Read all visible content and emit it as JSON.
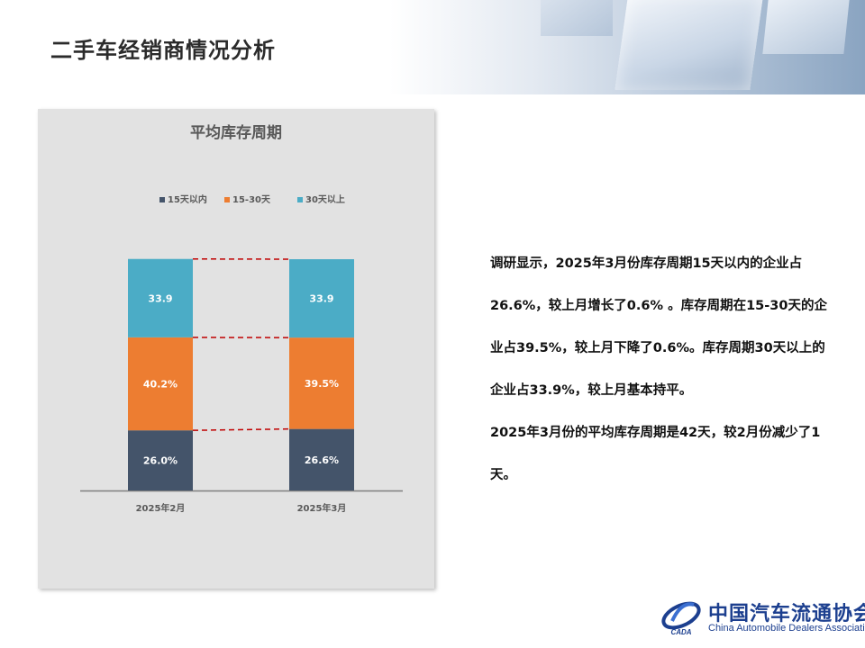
{
  "page": {
    "title": "二手车经销商情况分析"
  },
  "chart_data": {
    "type": "bar",
    "stacked": true,
    "title": "平均库存周期",
    "categories": [
      "2025年2月",
      "2025年3月"
    ],
    "series": [
      {
        "name": "15天以内",
        "values": [
          26.0,
          26.6
        ],
        "labels": [
          "26.0%",
          "26.6%"
        ],
        "color": "#44546a"
      },
      {
        "name": "15-30天",
        "values": [
          40.2,
          39.5
        ],
        "labels": [
          "40.2%",
          "39.5%"
        ],
        "color": "#ed7d31"
      },
      {
        "name": "30天以上",
        "values": [
          33.9,
          33.9
        ],
        "labels": [
          "33.9%",
          "33.9%"
        ],
        "color": "#4bacc6"
      }
    ],
    "legend": "top",
    "grid": false,
    "ylim": [
      0,
      100
    ],
    "connector_color": "#c00000"
  },
  "description": {
    "paragraphs": [
      "调研显示，2025年3月份库存周期15天以内的企业占26.6%，较上月增长了0.6% 。库存周期在15-30天的企业占39.5%，较上月下降了0.6%。库存周期30天以上的企业占33.9%，较上月基本持平。",
      "2025年3月份的平均库存周期是42天，较2月份减少了1天。"
    ]
  },
  "logo": {
    "cn": "中国汽车流通协会",
    "en": "China Automobile Dealers Association",
    "mark_text": "CADA"
  }
}
